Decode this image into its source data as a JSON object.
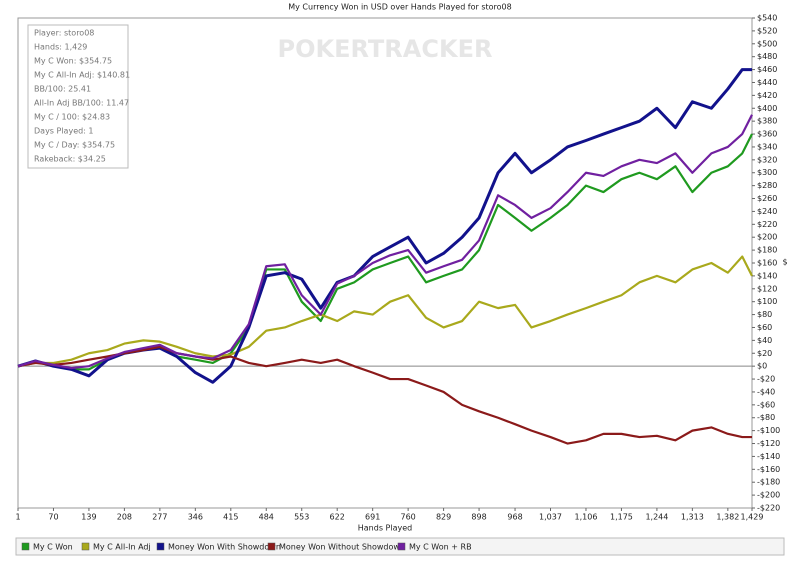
{
  "chart_data": {
    "type": "line",
    "title": "My Currency Won in USD over Hands Played for storo08",
    "x_label": "Hands Played",
    "y_label": "$",
    "watermark": "POKERTRACKER",
    "stats": [
      "Player: storo08",
      "Hands: 1,429",
      "My C Won: $354.75",
      "My C All-In Adj: $140.81",
      "BB/100: 25.41",
      "All-In Adj BB/100: 11.47",
      "My C / 100: $24.83",
      "Days Played: 1",
      "My C / Day: $354.75",
      "Rakeback: $34.25"
    ],
    "x": [
      1,
      35,
      70,
      105,
      139,
      175,
      208,
      245,
      277,
      310,
      346,
      380,
      415,
      450,
      484,
      520,
      553,
      590,
      622,
      655,
      691,
      725,
      760,
      795,
      829,
      865,
      898,
      935,
      968,
      1000,
      1037,
      1070,
      1106,
      1140,
      1175,
      1210,
      1244,
      1280,
      1313,
      1350,
      1382,
      1410,
      1429
    ],
    "series": [
      {
        "name": "My C Won",
        "color": "#1f9a1f",
        "values": [
          0,
          8,
          0,
          -5,
          -5,
          10,
          20,
          25,
          30,
          15,
          10,
          5,
          20,
          60,
          150,
          150,
          100,
          70,
          120,
          130,
          150,
          160,
          170,
          130,
          140,
          150,
          180,
          250,
          230,
          210,
          230,
          250,
          280,
          270,
          290,
          300,
          290,
          310,
          270,
          300,
          310,
          330,
          360
        ]
      },
      {
        "name": "My C All-In Adj",
        "color": "#a9a91c",
        "values": [
          0,
          5,
          5,
          10,
          20,
          25,
          35,
          40,
          38,
          30,
          20,
          15,
          18,
          30,
          55,
          60,
          70,
          80,
          70,
          85,
          80,
          100,
          110,
          75,
          60,
          70,
          100,
          90,
          95,
          60,
          70,
          80,
          90,
          100,
          110,
          130,
          140,
          130,
          150,
          160,
          145,
          170,
          140
        ]
      },
      {
        "name": "Money Won With Showdown",
        "color": "#12128c",
        "values": [
          0,
          8,
          0,
          -5,
          -15,
          10,
          20,
          25,
          28,
          15,
          -10,
          -25,
          0,
          60,
          140,
          145,
          135,
          90,
          130,
          140,
          170,
          185,
          200,
          160,
          175,
          200,
          230,
          300,
          330,
          300,
          320,
          340,
          350,
          360,
          370,
          380,
          400,
          370,
          410,
          400,
          430,
          460,
          460
        ]
      },
      {
        "name": "Money Won Without Showdown",
        "color": "#8b1a1a",
        "values": [
          0,
          5,
          2,
          5,
          10,
          15,
          20,
          25,
          30,
          20,
          15,
          10,
          15,
          5,
          0,
          5,
          10,
          5,
          10,
          0,
          -10,
          -20,
          -20,
          -30,
          -40,
          -60,
          -70,
          -80,
          -90,
          -100,
          -110,
          -120,
          -115,
          -105,
          -105,
          -110,
          -108,
          -115,
          -100,
          -95,
          -105,
          -110,
          -110
        ]
      },
      {
        "name": "My C Won + RB",
        "color": "#7020a0",
        "values": [
          0,
          8,
          2,
          -3,
          0,
          12,
          22,
          28,
          33,
          20,
          15,
          12,
          25,
          65,
          155,
          158,
          110,
          80,
          128,
          140,
          160,
          172,
          180,
          145,
          155,
          165,
          195,
          265,
          250,
          230,
          245,
          270,
          300,
          295,
          310,
          320,
          315,
          330,
          300,
          330,
          340,
          360,
          390
        ]
      }
    ],
    "xlim": [
      1,
      1429
    ],
    "xticks": [
      1,
      70,
      139,
      208,
      277,
      346,
      415,
      484,
      553,
      622,
      691,
      760,
      829,
      898,
      968,
      {
        "value": 1037,
        "label": "1,037"
      },
      {
        "value": 1106,
        "label": "1,106"
      },
      {
        "value": 1175,
        "label": "1,175"
      },
      {
        "value": 1244,
        "label": "1,244"
      },
      {
        "value": 1313,
        "label": "1,313"
      },
      {
        "value": 1382,
        "label": "1,382"
      },
      {
        "value": 1429,
        "label": "1,429"
      }
    ],
    "ylim": [
      -220,
      540
    ],
    "yticks": [
      {
        "value": 540,
        "label": "$540"
      },
      {
        "value": 520,
        "label": "$520"
      },
      {
        "value": 500,
        "label": "$500"
      },
      {
        "value": 480,
        "label": "$480"
      },
      {
        "value": 460,
        "label": "$460"
      },
      {
        "value": 440,
        "label": "$440"
      },
      {
        "value": 420,
        "label": "$420"
      },
      {
        "value": 400,
        "label": "$400"
      },
      {
        "value": 380,
        "label": "$380"
      },
      {
        "value": 360,
        "label": "$360"
      },
      {
        "value": 340,
        "label": "$340"
      },
      {
        "value": 320,
        "label": "$320"
      },
      {
        "value": 300,
        "label": "$300"
      },
      {
        "value": 280,
        "label": "$280"
      },
      {
        "value": 260,
        "label": "$260"
      },
      {
        "value": 240,
        "label": "$240"
      },
      {
        "value": 220,
        "label": "$220"
      },
      {
        "value": 200,
        "label": "$200"
      },
      {
        "value": 180,
        "label": "$180"
      },
      {
        "value": 160,
        "label": "$160"
      },
      {
        "value": 140,
        "label": "$140"
      },
      {
        "value": 120,
        "label": "$120"
      },
      {
        "value": 100,
        "label": "$100"
      },
      {
        "value": 80,
        "label": "$80"
      },
      {
        "value": 60,
        "label": "$60"
      },
      {
        "value": 40,
        "label": "$40"
      },
      {
        "value": 20,
        "label": "$20"
      },
      {
        "value": 0,
        "label": "$0"
      },
      {
        "value": -20,
        "label": "-$20"
      },
      {
        "value": -40,
        "label": "-$40"
      },
      {
        "value": -60,
        "label": "-$60"
      },
      {
        "value": -80,
        "label": "-$80"
      },
      {
        "value": -100,
        "label": "-$100"
      },
      {
        "value": -120,
        "label": "-$120"
      },
      {
        "value": -140,
        "label": "-$140"
      },
      {
        "value": -160,
        "label": "-$160"
      },
      {
        "value": -180,
        "label": "-$180"
      },
      {
        "value": -200,
        "label": "-$200"
      },
      {
        "value": -220,
        "label": "-$220"
      }
    ]
  }
}
